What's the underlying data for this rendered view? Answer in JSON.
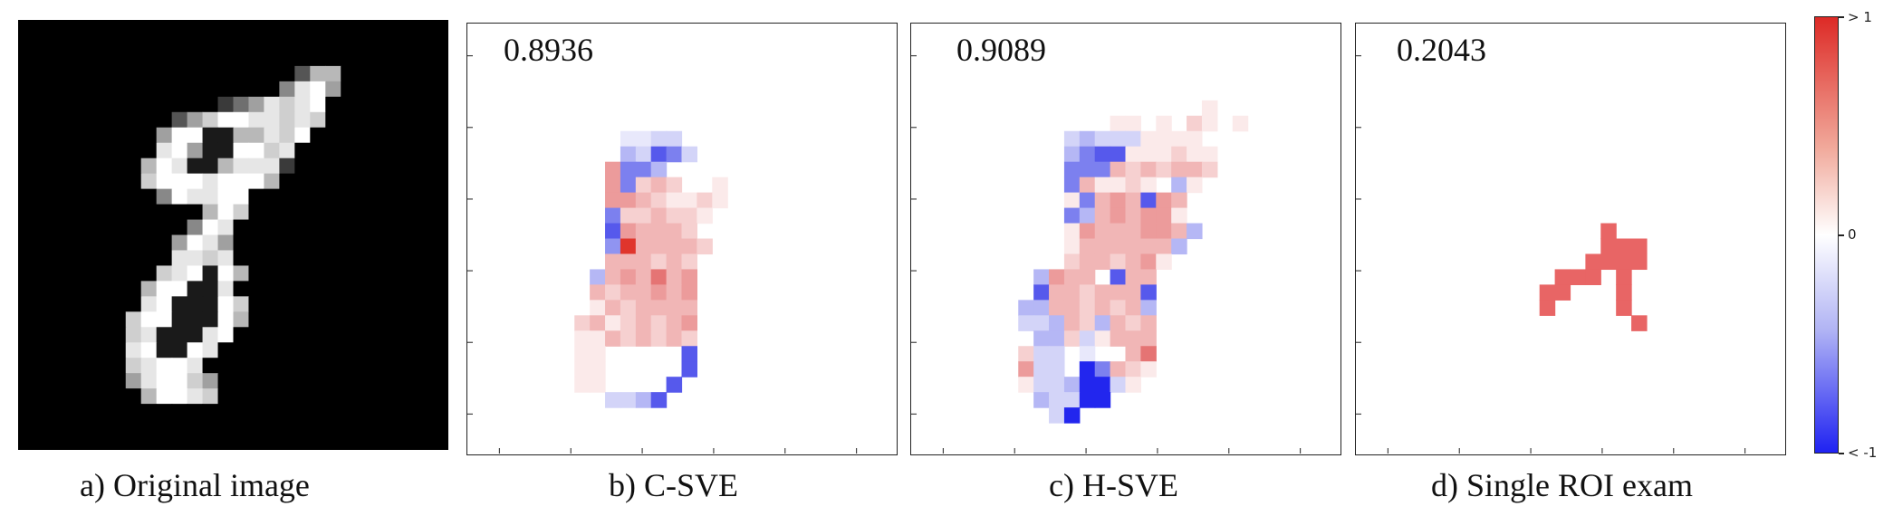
{
  "panels": {
    "a": {
      "caption": "a) Original image"
    },
    "b": {
      "caption": "b) C-SVE",
      "score": "0.8936"
    },
    "c": {
      "caption": "c) H-SVE",
      "score": "0.9089"
    },
    "d": {
      "caption": "d) Single ROI exam",
      "score": "0.2043"
    }
  },
  "colorbar": {
    "top_label": "> 1",
    "mid_label": "0",
    "bottom_label": "< -1",
    "colors": {
      "max": "#dd2a26",
      "mid": "#ffffff",
      "min": "#1f22f2"
    }
  },
  "figure_images": {
    "grid_size": 28,
    "original_image": [
      "............................",
      "............................",
      "............................",
      "..................266.......",
      ".................4895.......",
      ".............1358789........",
      "..........2579988787........",
      ".........5990066879.........",
      ".........895009978..........",
      "........6980068881..........",
      "........799989996...........",
      ".........498899.............",
      "............697.............",
      "...........498..............",
      "..........5985..............",
      "..........8878..............",
      ".........789096.............",
      "........699008..............",
      "........8900097.............",
      ".......79900096.............",
      ".......7800089..............",
      ".......890098...............",
      ".......78998................",
      ".......589975...............",
      "........69987...............",
      "............................",
      "............................",
      "............................"
    ],
    "c_sve": [
      "............................",
      "............................",
      "............................",
      "............................",
      "............................",
      "............................",
      "............................",
      "..........ddbb..............",
      "..........cbCBb.............",
      ".........2BBc...............",
      ".........2B1+1..p...........",
      ".........22+1pp1p...........",
      ".........B11+11p............",
      ".........C2+++1.............",
      ".........q4++++1............",
      ".........+++1+1.............",
      "........c+2+3+2.............",
      "........+1++2+2.............",
      "........p+1++++.............",
      ".......1+p1+1+2.............",
      ".......pp+1+1+1.............",
      ".......pp.....C.............",
      ".......pp.....C.............",
      ".......pp....C..............",
      ".........bbcC...............",
      "............................",
      "............................",
      "............................"
    ],
    "h_sve": [
      "............................",
      "............................",
      "............................",
      "............................",
      "............................",
      "...................p........",
      ".............pp.p.1p.p......",
      "..........bcbbbpppp.........",
      "..........cBCCppp1pp........",
      "..........BBB+1+1++1........",
      "..........B+pp1p.cp.........",
      "..........pB+2+C2+..........",
      "..........Bc+2+22p..........",
      "..........p2+++22+c.........",
      "..........p++++++c..........",
      "..........1++1+2p...........",
      "........c2++.C++............",
      "........C++1+++C............",
      ".......cc++1+1+c............",
      ".......bbc+1c+1+............",
      "........cc1bp+++............",
      ".......1bb.d..+3............",
      ".......2bb.DB+1p............",
      ".......pbbcDDbp.............",
      "........cbbDD...............",
      ".........bD.................",
      "............................",
      "............................"
    ],
    "single_roi": [
      "............................",
      "............................",
      "............................",
      "............................",
      "............................",
      "............................",
      "............................",
      "............................",
      "............................",
      "............................",
      "............................",
      "............................",
      "............................",
      "................+...........",
      "................+++.........",
      "...............++++.........",
      ".............+++.+..........",
      "............++...+..........",
      "............+....+..........",
      "..................+.........",
      "............................",
      "............................",
      "............................",
      "............................",
      "............................",
      "............................",
      "............................",
      "............................"
    ]
  }
}
